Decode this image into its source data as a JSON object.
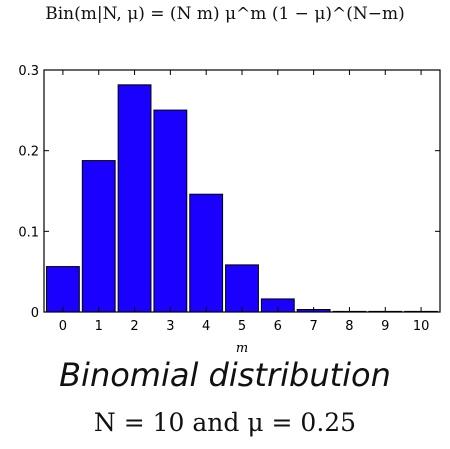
{
  "formula": "Bin(m|N, μ) = (N m) μ^m (1 − μ)^(N−m)",
  "chart_data": {
    "type": "bar",
    "title": "Binomial distribution",
    "subtitle": "N = 10 and μ = 0.25",
    "xlabel": "m",
    "ylabel": "",
    "categories": [
      "0",
      "1",
      "2",
      "3",
      "4",
      "5",
      "6",
      "7",
      "8",
      "9",
      "10"
    ],
    "values": [
      0.0563,
      0.1877,
      0.2816,
      0.2503,
      0.146,
      0.0584,
      0.0162,
      0.0031,
      0.0004,
      3e-05,
      1e-06
    ],
    "ylim": [
      0,
      0.3
    ],
    "yticks": [
      "0",
      "0.1",
      "0.2",
      "0.3"
    ],
    "bar_color": "#1a00ff",
    "grid": false
  }
}
